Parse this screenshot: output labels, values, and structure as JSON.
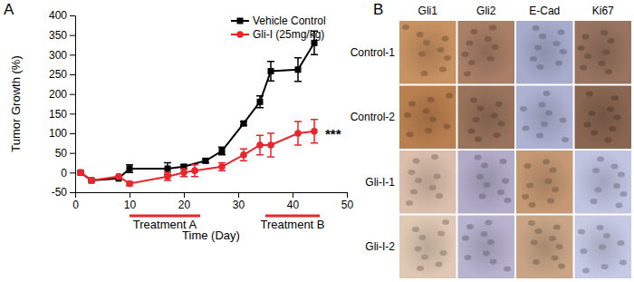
{
  "chart_data": {
    "type": "line",
    "panel_label": "A",
    "x_label": "Time (Day)",
    "y_label": "Tumor Growth (%)",
    "xlim": [
      0,
      50
    ],
    "xticks": [
      0,
      10,
      20,
      30,
      40,
      50
    ],
    "ylim": [
      -50,
      400
    ],
    "yticks": [
      -50,
      0,
      50,
      100,
      150,
      200,
      250,
      300,
      350,
      400
    ],
    "legend": "upper right",
    "series": [
      {
        "name": "Vehicle Control",
        "color": "#000000",
        "marker": "square",
        "x": [
          1,
          3,
          8,
          10,
          17,
          20,
          24,
          27,
          31,
          34,
          36,
          41,
          44
        ],
        "values": [
          0,
          -20,
          -15,
          10,
          10,
          15,
          30,
          55,
          125,
          180,
          258,
          262,
          330
        ],
        "errors": [
          0,
          0,
          0,
          10,
          15,
          5,
          5,
          10,
          5,
          15,
          25,
          30,
          30
        ]
      },
      {
        "name": "Gli-I (25mg/kg)",
        "color": "#e8262b",
        "marker": "circle",
        "x": [
          1,
          3,
          8,
          10,
          17,
          20,
          22,
          27,
          31,
          34,
          36,
          41,
          44
        ],
        "values": [
          0,
          -20,
          -10,
          -28,
          -10,
          0,
          5,
          15,
          45,
          70,
          70,
          100,
          105
        ],
        "errors": [
          0,
          0,
          0,
          5,
          10,
          10,
          15,
          10,
          15,
          25,
          30,
          30,
          30
        ]
      }
    ],
    "treatments": [
      {
        "label": "Treatment A",
        "start": 10,
        "end": 23
      },
      {
        "label": "Treatment B",
        "start": 35,
        "end": 45
      }
    ],
    "annotations": [
      {
        "text": "***",
        "x": 46,
        "y": 105
      }
    ]
  },
  "panel_b": {
    "panel_label": "B",
    "columns": [
      "Gli1",
      "Gli2",
      "E-Cad",
      "Ki67"
    ],
    "rows": [
      "Control-1",
      "Control-2",
      "Gli-I-1",
      "Gli-I-2"
    ]
  }
}
